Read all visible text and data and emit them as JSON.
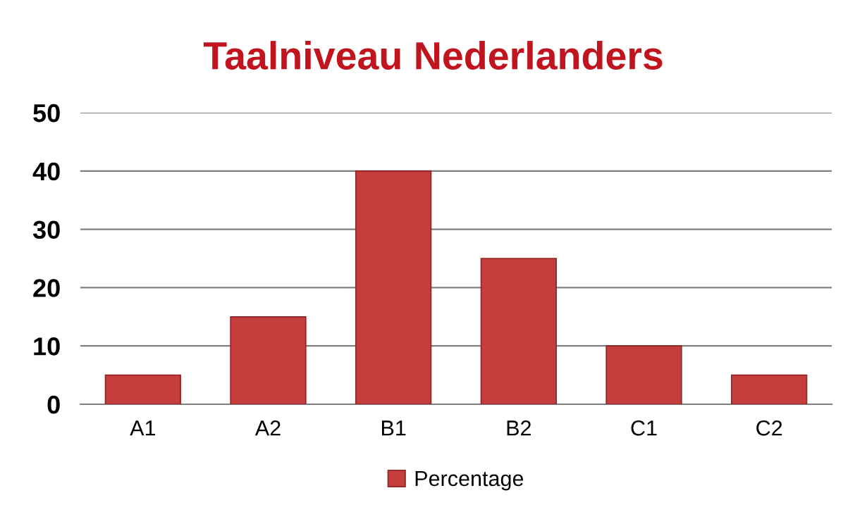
{
  "chart_data": {
    "type": "bar",
    "title": "Taalniveau Nederlanders",
    "categories": [
      "A1",
      "A2",
      "B1",
      "B2",
      "C1",
      "C2"
    ],
    "series": [
      {
        "name": "Percentage",
        "color": "#c63d3d",
        "values": [
          5,
          15,
          40,
          25,
          10,
          5
        ]
      }
    ],
    "ylim": [
      0,
      50
    ],
    "yticks": [
      0,
      10,
      20,
      30,
      40,
      50
    ],
    "grid": "y",
    "legend": "bottom"
  }
}
